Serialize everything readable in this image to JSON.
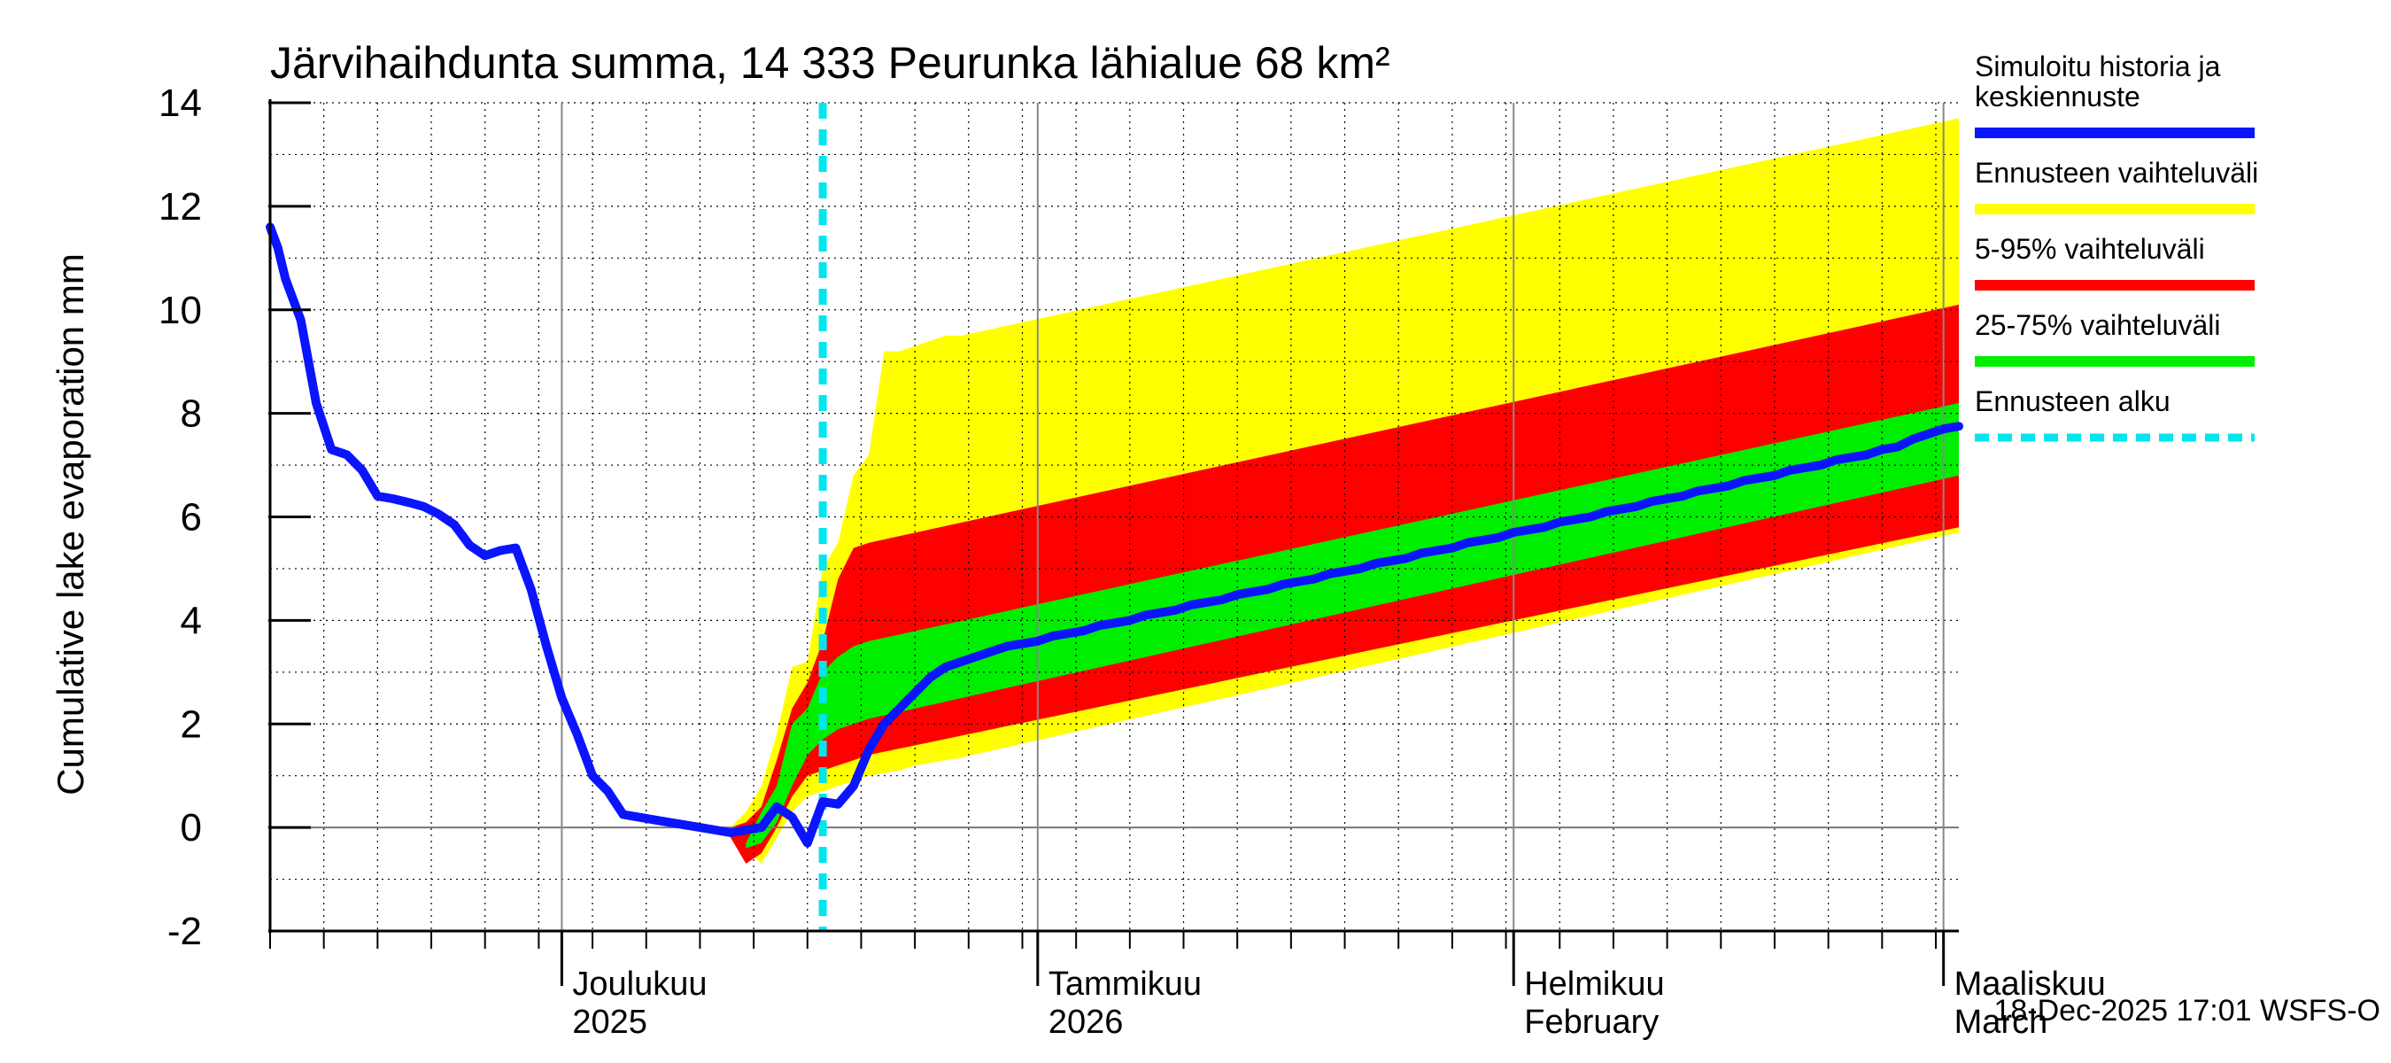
{
  "chart_data": {
    "type": "area",
    "title": "Järvihaihdunta summa, 14 333 Peurunka lähialue 68 km²",
    "ylabel": "Cumulative lake evaporation   mm",
    "ylim": [
      -2,
      14
    ],
    "yticks": [
      -2,
      0,
      2,
      4,
      6,
      8,
      10,
      12,
      14
    ],
    "x_range_days": [
      0,
      110
    ],
    "x_origin_date": "2025-11-12",
    "month_boundaries": [
      19,
      50,
      81,
      109
    ],
    "month_labels": [
      {
        "day": 19,
        "line1": "Joulukuu",
        "line2": "2025"
      },
      {
        "day": 50,
        "line1": "Tammikuu",
        "line2": "2026"
      },
      {
        "day": 81,
        "line1": "Helmikuu",
        "line2": "February"
      },
      {
        "day": 109,
        "line1": "Maaliskuu",
        "line2": "March"
      }
    ],
    "forecast_start_day": 36,
    "colors": {
      "history": "#0a14ff",
      "yellow": "#ffff00",
      "red": "#ff0000",
      "green": "#00ee00",
      "forecast_start": "#00e5ee",
      "grid": "#000000",
      "axis": "#000000"
    },
    "series": [
      {
        "name": "Simuloitu historia ja keskiennuste",
        "x": [
          0,
          0.5,
          1,
          2,
          3,
          4,
          5,
          6,
          7,
          8,
          9,
          10,
          11,
          12,
          13,
          14,
          15,
          16,
          17,
          18,
          19,
          20,
          21,
          22,
          23,
          24,
          25,
          26,
          27,
          28,
          29,
          30,
          31,
          32,
          33,
          34,
          35,
          36,
          37,
          38,
          39,
          40,
          41,
          42,
          43,
          44,
          45,
          46,
          47,
          48,
          49,
          50,
          51,
          52,
          53,
          54,
          55,
          56,
          57,
          58,
          59,
          60,
          61,
          62,
          63,
          64,
          65,
          66,
          67,
          68,
          69,
          70,
          71,
          72,
          73,
          74,
          75,
          76,
          77,
          78,
          79,
          80,
          81,
          82,
          83,
          84,
          85,
          86,
          87,
          88,
          89,
          90,
          91,
          92,
          93,
          94,
          95,
          96,
          97,
          98,
          99,
          100,
          101,
          102,
          103,
          104,
          105,
          106,
          107,
          108,
          109,
          110
        ],
        "values": [
          11.6,
          11.2,
          10.6,
          9.8,
          8.2,
          7.3,
          7.2,
          6.9,
          6.4,
          6.35,
          6.28,
          6.2,
          6.05,
          5.85,
          5.45,
          5.25,
          5.35,
          5.4,
          4.6,
          3.5,
          2.5,
          1.8,
          1.0,
          0.7,
          0.25,
          0.2,
          0.15,
          0.1,
          0.05,
          0.0,
          -0.05,
          -0.1,
          -0.05,
          0.0,
          0.4,
          0.2,
          -0.3,
          0.5,
          0.45,
          0.8,
          1.5,
          2.0,
          2.3,
          2.6,
          2.9,
          3.1,
          3.2,
          3.3,
          3.4,
          3.5,
          3.55,
          3.6,
          3.7,
          3.75,
          3.8,
          3.9,
          3.95,
          4.0,
          4.1,
          4.15,
          4.2,
          4.3,
          4.35,
          4.4,
          4.5,
          4.55,
          4.6,
          4.7,
          4.75,
          4.8,
          4.9,
          4.95,
          5.0,
          5.1,
          5.15,
          5.2,
          5.3,
          5.35,
          5.4,
          5.5,
          5.55,
          5.6,
          5.7,
          5.75,
          5.8,
          5.9,
          5.95,
          6.0,
          6.1,
          6.15,
          6.2,
          6.3,
          6.35,
          6.4,
          6.5,
          6.55,
          6.6,
          6.7,
          6.75,
          6.8,
          6.9,
          6.95,
          7.0,
          7.1,
          7.15,
          7.2,
          7.3,
          7.35,
          7.5,
          7.6,
          7.7,
          7.75
        ]
      },
      {
        "name": "Ennusteen vaihteluväli",
        "x": [
          29,
          30,
          31,
          32,
          33,
          34,
          35,
          36,
          37,
          38,
          39,
          40,
          41,
          42,
          43,
          44,
          45,
          110
        ],
        "upper": [
          0.0,
          0.0,
          0.3,
          0.8,
          1.8,
          3.1,
          3.2,
          5.0,
          5.5,
          6.8,
          7.2,
          9.2,
          9.2,
          9.3,
          9.4,
          9.5,
          9.5,
          13.7
        ],
        "lower": [
          0.0,
          -0.1,
          -0.4,
          -0.7,
          -0.2,
          0.3,
          0.6,
          0.7,
          0.8,
          0.9,
          1.0,
          1.05,
          1.1,
          1.2,
          1.25,
          1.3,
          1.35,
          5.7
        ]
      },
      {
        "name": "5-95% vaihteluväli",
        "x": [
          30,
          31,
          32,
          33,
          34,
          35,
          36,
          37,
          38,
          39,
          110
        ],
        "upper": [
          0.0,
          0.1,
          0.4,
          1.3,
          2.3,
          2.8,
          3.6,
          4.8,
          5.4,
          5.5,
          10.1
        ],
        "lower": [
          -0.2,
          -0.7,
          -0.5,
          0.0,
          0.6,
          1.0,
          1.1,
          1.2,
          1.3,
          1.4,
          5.8
        ]
      },
      {
        "name": "25-75% vaihteluväli",
        "x": [
          31,
          32,
          33,
          34,
          35,
          36,
          37,
          38,
          39,
          110
        ],
        "upper": [
          -0.3,
          0.3,
          0.8,
          2.0,
          2.3,
          3.0,
          3.3,
          3.5,
          3.6,
          8.2
        ],
        "lower": [
          -0.4,
          -0.3,
          0.1,
          0.8,
          1.4,
          1.7,
          1.9,
          2.0,
          2.1,
          6.8
        ]
      },
      {
        "name": "Ennusteen alku"
      }
    ],
    "legend": [
      {
        "label_lines": [
          "Simuloitu historia ja",
          "keskiennuste"
        ],
        "style": "history"
      },
      {
        "label_lines": [
          "Ennusteen vaihteluväli"
        ],
        "style": "yellow"
      },
      {
        "label_lines": [
          "5-95% vaihteluväli"
        ],
        "style": "red"
      },
      {
        "label_lines": [
          "25-75% vaihteluväli"
        ],
        "style": "green"
      },
      {
        "label_lines": [
          "Ennusteen alku"
        ],
        "style": "forecast_start"
      }
    ],
    "legend_position": "right",
    "footer": "18-Dec-2025 17:01 WSFS-O"
  }
}
